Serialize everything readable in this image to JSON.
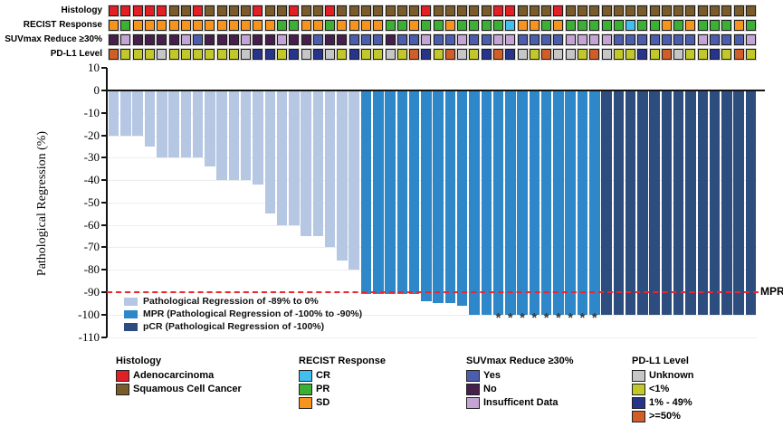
{
  "tracks": {
    "rows": [
      {
        "id": "histology",
        "label": "Histology",
        "palette": {
          "A": {
            "label": "Adenocarcinoma",
            "color": "#e31f26"
          },
          "S": {
            "label": "Squamous Cell Cancer",
            "color": "#7a5b2b"
          }
        },
        "cells": [
          "A",
          "A",
          "A",
          "A",
          "A",
          "S",
          "S",
          "A",
          "S",
          "S",
          "S",
          "S",
          "A",
          "S",
          "S",
          "A",
          "S",
          "S",
          "A",
          "S",
          "S",
          "S",
          "S",
          "S",
          "S",
          "S",
          "A",
          "S",
          "S",
          "S",
          "S",
          "S",
          "A",
          "A",
          "S",
          "S",
          "S",
          "A",
          "S",
          "S",
          "S",
          "S",
          "S",
          "S",
          "S",
          "S",
          "S",
          "S",
          "S",
          "S",
          "S",
          "S",
          "S",
          "S"
        ]
      },
      {
        "id": "recist",
        "label": "RECIST Response",
        "palette": {
          "CR": {
            "label": "CR",
            "color": "#41c0f0"
          },
          "PR": {
            "label": "PR",
            "color": "#3cb034"
          },
          "SD": {
            "label": "SD",
            "color": "#f7941e"
          }
        },
        "cells": [
          "SD",
          "PR",
          "SD",
          "SD",
          "SD",
          "SD",
          "SD",
          "SD",
          "SD",
          "SD",
          "SD",
          "SD",
          "SD",
          "SD",
          "PR",
          "PR",
          "SD",
          "SD",
          "PR",
          "SD",
          "SD",
          "SD",
          "SD",
          "PR",
          "PR",
          "SD",
          "PR",
          "PR",
          "SD",
          "PR",
          "PR",
          "PR",
          "PR",
          "CR",
          "SD",
          "SD",
          "PR",
          "SD",
          "PR",
          "PR",
          "PR",
          "PR",
          "PR",
          "CR",
          "PR",
          "PR",
          "SD",
          "PR",
          "SD",
          "PR",
          "PR",
          "PR",
          "SD",
          "PR"
        ]
      },
      {
        "id": "suvmax",
        "label": "SUVmax Reduce ≥30%",
        "palette": {
          "Y": {
            "label": "Yes",
            "color": "#4c5dad"
          },
          "N": {
            "label": "No",
            "color": "#471f4d"
          },
          "I": {
            "label": "Insufficent Data",
            "color": "#c3a4d4"
          }
        },
        "cells": [
          "N",
          "I",
          "N",
          "N",
          "N",
          "N",
          "I",
          "Y",
          "N",
          "N",
          "N",
          "I",
          "N",
          "N",
          "I",
          "N",
          "N",
          "Y",
          "N",
          "N",
          "Y",
          "Y",
          "Y",
          "N",
          "Y",
          "Y",
          "I",
          "Y",
          "Y",
          "I",
          "Y",
          "Y",
          "I",
          "I",
          "Y",
          "Y",
          "Y",
          "Y",
          "I",
          "I",
          "I",
          "I",
          "Y",
          "Y",
          "Y",
          "Y",
          "Y",
          "Y",
          "Y",
          "I",
          "Y",
          "Y",
          "Y",
          "I"
        ]
      },
      {
        "id": "pdl1",
        "label": "PD-L1 Level",
        "palette": {
          "U": {
            "label": "Unknown",
            "color": "#c6c6c6"
          },
          "L1": {
            "label": "<1%",
            "color": "#c2c829"
          },
          "P49": {
            "label": "1% - 49%",
            "color": "#27348b"
          },
          "P50": {
            "label": ">=50%",
            "color": "#cf5e28"
          }
        },
        "cells": [
          "P50",
          "L1",
          "L1",
          "L1",
          "U",
          "L1",
          "L1",
          "L1",
          "L1",
          "L1",
          "L1",
          "U",
          "P49",
          "P49",
          "L1",
          "P49",
          "U",
          "P49",
          "U",
          "L1",
          "P49",
          "L1",
          "L1",
          "U",
          "L1",
          "P50",
          "P49",
          "L1",
          "P50",
          "U",
          "L1",
          "P49",
          "P50",
          "P49",
          "U",
          "L1",
          "P50",
          "U",
          "U",
          "L1",
          "P50",
          "U",
          "L1",
          "L1",
          "P49",
          "L1",
          "P50",
          "U",
          "L1",
          "L1",
          "P49",
          "L1",
          "P50",
          "L1"
        ]
      }
    ]
  },
  "chart_data": {
    "type": "bar",
    "title": "",
    "xlabel": "",
    "ylabel": "Pathological Regression (%)",
    "ylim": [
      -110,
      10
    ],
    "yticks": [
      10,
      0,
      -10,
      -20,
      -30,
      -40,
      -50,
      -60,
      -70,
      -80,
      -90,
      -100,
      -110
    ],
    "grid": "faint horizontal",
    "values": [
      -20,
      -20,
      -20,
      -25,
      -30,
      -30,
      -30,
      -30,
      -34,
      -40,
      -40,
      -40,
      -42,
      -55,
      -60,
      -60,
      -65,
      -65,
      -70,
      -76,
      -80,
      -91,
      -91,
      -91,
      -91,
      -91,
      -94,
      -95,
      -95,
      -96,
      -100,
      -100,
      -100,
      -100,
      -100,
      -100,
      -100,
      -100,
      -100,
      -100,
      -100,
      -100,
      -100,
      -100,
      -100,
      -100,
      -100,
      -100,
      -100,
      -100,
      -100,
      -100,
      -100,
      -100
    ],
    "bar_groups": [
      {
        "name": "light",
        "label": "Pathological Regression of -89% to 0%",
        "color": "#b5c7e3",
        "count": 21
      },
      {
        "name": "mpr",
        "label": "MPR (Pathological Regression of -100% to -90%)",
        "color": "#2e87c8",
        "count": 20
      },
      {
        "name": "pcr",
        "label": "pCR (Pathological Regression of -100%)",
        "color": "#2c4d7e",
        "count": 13
      }
    ],
    "reference_line": {
      "y": -90,
      "label": "MPR",
      "color": "#e8282c",
      "style": "dashed"
    },
    "asterisk_columns": [
      33,
      34,
      35,
      36,
      37,
      38,
      39,
      40,
      41
    ],
    "asterisk_symbol": "*",
    "legend_position": "inside bottom-left"
  },
  "bottom_legend": {
    "groups": [
      {
        "title": "Histology",
        "items": [
          {
            "label": "Adenocarcinoma",
            "color": "#e31f26"
          },
          {
            "label": "Squamous Cell Cancer",
            "color": "#7a5b2b"
          }
        ]
      },
      {
        "title": "RECIST Response",
        "items": [
          {
            "label": "CR",
            "color": "#41c0f0"
          },
          {
            "label": "PR",
            "color": "#3cb034"
          },
          {
            "label": "SD",
            "color": "#f7941e"
          }
        ]
      },
      {
        "title": "SUVmax Reduce ≥30%",
        "items": [
          {
            "label": "Yes",
            "color": "#4c5dad"
          },
          {
            "label": "No",
            "color": "#471f4d"
          },
          {
            "label": "Insufficent Data",
            "color": "#c3a4d4"
          }
        ]
      },
      {
        "title": "PD-L1 Level",
        "items": [
          {
            "label": "Unknown",
            "color": "#c6c6c6"
          },
          {
            "label": "<1%",
            "color": "#c2c829"
          },
          {
            "label": "1% - 49%",
            "color": "#27348b"
          },
          {
            "label": ">=50%",
            "color": "#cf5e28"
          }
        ]
      }
    ]
  }
}
